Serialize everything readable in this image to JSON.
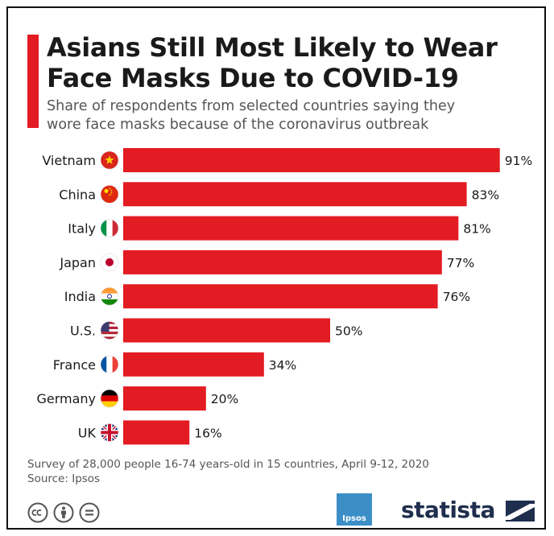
{
  "title_line1": "Asians Still Most Likely to Wear",
  "title_line2": "Face Masks Due to COVID-19",
  "subtitle_line1": "Share of respondents from selected countries saying they",
  "subtitle_line2": "wore face masks because of the coronavirus outbreak",
  "footer_line1": "Survey of 28,000 people 16-74 years-old in 15 countries, April 9-12, 2020",
  "footer_line2": "Source: Ipsos",
  "ipsos_label": "Ipsos",
  "brand": "statista",
  "colors": {
    "accent": "#e31b23",
    "text": "#1a1a1a",
    "brand": "#1f2e4d",
    "ipsos": "#3c8fc6"
  },
  "icons": [
    "creative-commons-icon",
    "attribution-icon",
    "no-derivatives-icon",
    "ipsos-logo",
    "statista-logo-icon"
  ],
  "chart_data": {
    "type": "bar",
    "orientation": "horizontal",
    "categories": [
      "Vietnam",
      "China",
      "Italy",
      "Japan",
      "India",
      "U.S.",
      "France",
      "Germany",
      "UK"
    ],
    "values": [
      91,
      83,
      81,
      77,
      76,
      50,
      34,
      20,
      16
    ],
    "value_labels": [
      "91%",
      "83%",
      "81%",
      "77%",
      "76%",
      "50%",
      "34%",
      "20%",
      "16%"
    ],
    "flags": [
      "vietnam-flag-icon",
      "china-flag-icon",
      "italy-flag-icon",
      "japan-flag-icon",
      "india-flag-icon",
      "us-flag-icon",
      "france-flag-icon",
      "germany-flag-icon",
      "uk-flag-icon"
    ],
    "unit": "%",
    "xlim": [
      0,
      100
    ],
    "grid": false,
    "legend": "none",
    "bar_color": "#e31b23"
  }
}
